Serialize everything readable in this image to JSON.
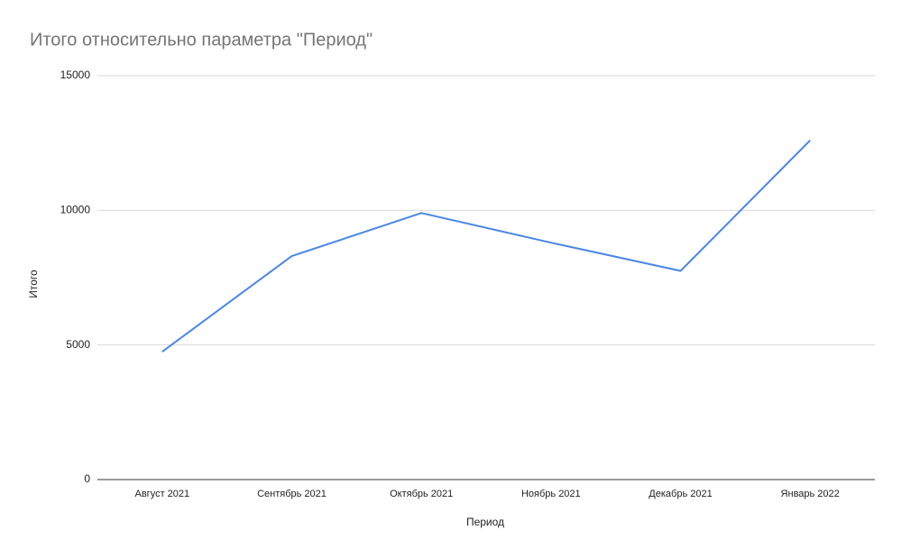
{
  "chart_data": {
    "type": "line",
    "title": "Итого относительно параметра \"Период\"",
    "x_label": "Период",
    "y_label": "Итого",
    "categories": [
      "Август 2021",
      "Сентябрь 2021",
      "Октябрь 2021",
      "Ноябрь 2021",
      "Декабрь 2021",
      "Январь 2022"
    ],
    "series": [
      {
        "name": "Итого",
        "color": "#4a86e8",
        "values": [
          4750,
          8300,
          9900,
          8800,
          7750,
          12600
        ]
      }
    ],
    "ylim": [
      0,
      15000
    ],
    "yticks": [
      0,
      5000,
      10000,
      15000
    ],
    "grid": true
  }
}
